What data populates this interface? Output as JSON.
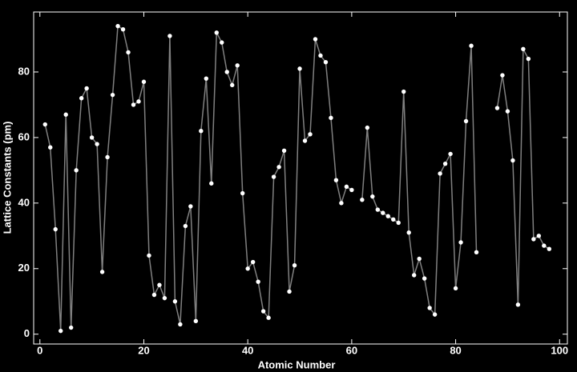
{
  "chart_data": {
    "type": "line",
    "xlabel": "Atomic Number",
    "ylabel": "Lattice Constants (pm)",
    "x": [
      1,
      2,
      3,
      4,
      5,
      6,
      7,
      8,
      9,
      10,
      11,
      12,
      13,
      14,
      15,
      16,
      17,
      18,
      19,
      20,
      21,
      22,
      23,
      24,
      25,
      26,
      27,
      28,
      29,
      30,
      31,
      32,
      33,
      34,
      35,
      36,
      37,
      38,
      39,
      40,
      41,
      42,
      43,
      44,
      45,
      46,
      47,
      48,
      49,
      50,
      51,
      52,
      53,
      54,
      55,
      56,
      57,
      58,
      59,
      60,
      61,
      62,
      63,
      64,
      65,
      66,
      67,
      68,
      69,
      70,
      71,
      72,
      73,
      74,
      75,
      76,
      77,
      78,
      79,
      80,
      81,
      82,
      83,
      84,
      85,
      86,
      87,
      88,
      89,
      90,
      91,
      92,
      93,
      94,
      95,
      96,
      97,
      98
    ],
    "series": [
      {
        "color": "#808080",
        "marker_color": "#ffffff",
        "values": [
          64,
          57,
          32,
          1,
          67,
          2,
          50,
          72,
          75,
          60,
          58,
          19,
          54,
          73,
          94,
          93,
          86,
          70,
          71,
          77,
          24,
          12,
          15,
          11,
          91,
          10,
          3,
          33,
          39,
          4,
          62,
          78,
          46,
          92,
          89,
          80,
          76,
          82,
          43,
          20,
          22,
          16,
          7,
          5,
          48,
          51,
          56,
          13,
          21,
          81,
          59,
          61,
          90,
          85,
          83,
          66,
          47,
          40,
          45,
          44,
          null,
          41,
          63,
          42,
          38,
          37,
          36,
          35,
          34,
          74,
          31,
          18,
          23,
          17,
          8,
          6,
          49,
          52,
          55,
          14,
          28,
          65,
          88,
          25,
          null,
          null,
          null,
          69,
          79,
          68,
          53,
          9,
          87,
          84,
          29,
          30,
          27,
          26
        ]
      }
    ],
    "xlim": [
      -1.2,
      101.5
    ],
    "ylim": [
      -3,
      98.3
    ],
    "xticks": [
      0,
      20,
      40,
      60,
      80,
      100
    ],
    "yticks": [
      0,
      20,
      40,
      60,
      80
    ]
  }
}
